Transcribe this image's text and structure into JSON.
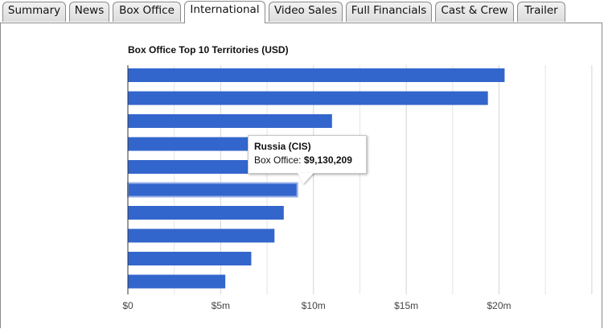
{
  "tabs": [
    {
      "label": "Summary",
      "active": false
    },
    {
      "label": "News",
      "active": false
    },
    {
      "label": "Box Office",
      "active": false
    },
    {
      "label": "International",
      "active": true
    },
    {
      "label": "Video Sales",
      "active": false
    },
    {
      "label": "Full Financials",
      "active": false
    },
    {
      "label": "Cast & Crew",
      "active": false
    },
    {
      "label": "Trailer",
      "active": false
    }
  ],
  "colors": {
    "bar": "#3366cc",
    "grid": "#e4e4e4",
    "axis": "#333333",
    "highlight_outline": "#9ab0e6"
  },
  "tooltip": {
    "title": "Russia (CIS)",
    "value_label": "Box Office:",
    "value": "$9,130,209"
  },
  "chart_data": {
    "type": "bar",
    "orientation": "horizontal",
    "title": "Box Office Top 10 Territories (USD)",
    "categories": [
      "",
      "",
      "",
      "",
      "",
      "Russia (CIS)",
      "",
      "",
      "",
      ""
    ],
    "values": [
      20300000,
      19400000,
      11000000,
      9300000,
      9200000,
      9130209,
      8400000,
      7900000,
      6650000,
      5250000
    ],
    "highlighted_index": 5,
    "xlim": [
      0,
      25000000
    ],
    "xticks": [
      0,
      5000000,
      10000000,
      15000000,
      20000000
    ],
    "xtick_labels": [
      "$0",
      "$5m",
      "$10m",
      "$15m",
      "$20m"
    ],
    "grid": true,
    "legend": "none"
  }
}
